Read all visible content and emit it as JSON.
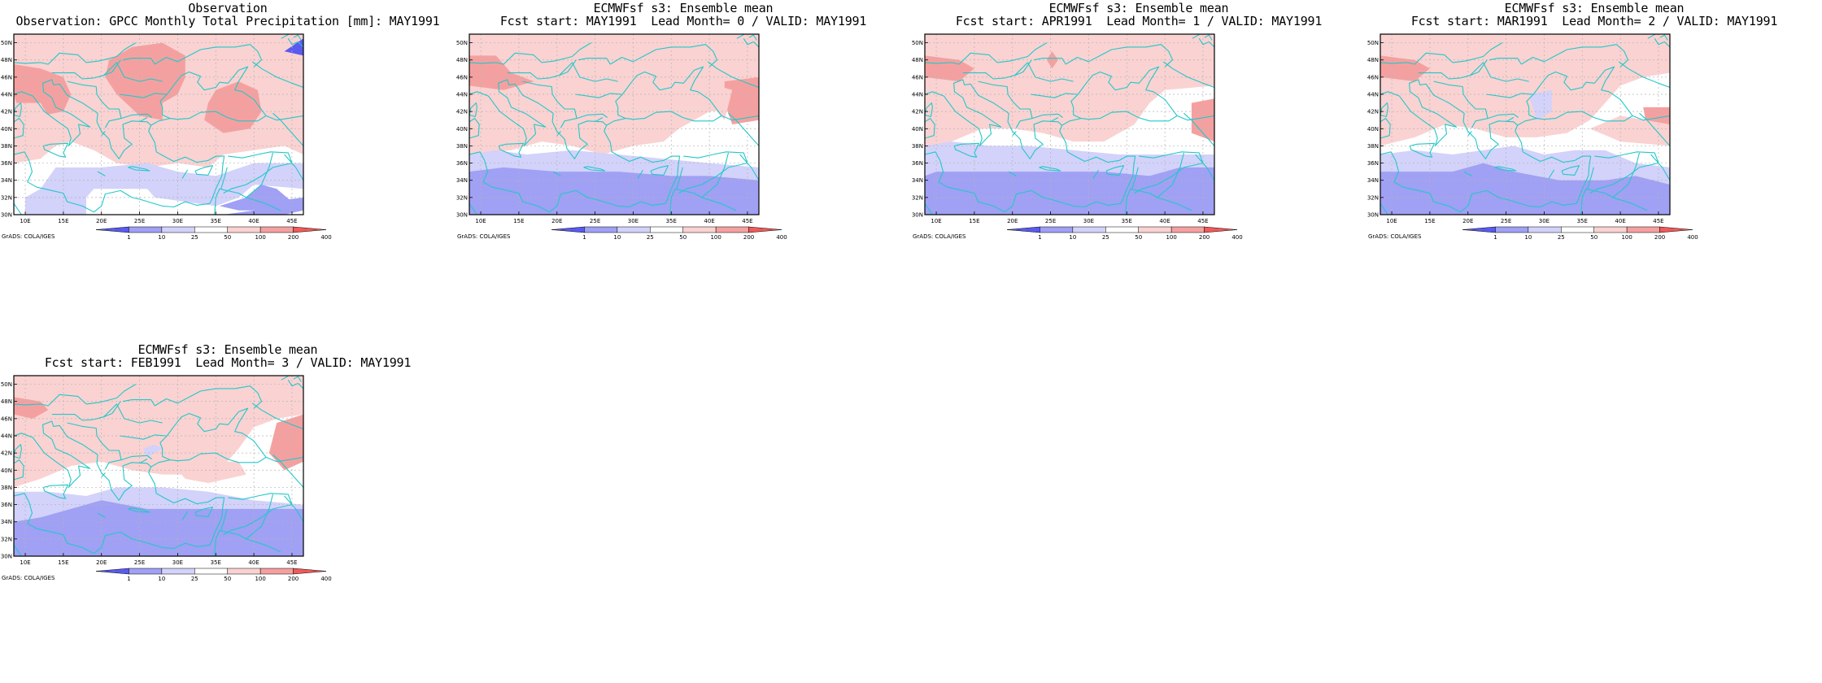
{
  "panels": [
    {
      "line1": "Observation",
      "line2": "Observation: GPCC Monthly Total Precipitation [mm]: MAY1991",
      "variant": "obs"
    },
    {
      "line1": "ECMWFsf s3: Ensemble mean",
      "line2": "Fcst start: MAY1991  Lead Month= 0 / VALID: MAY1991",
      "variant": "lead0"
    },
    {
      "line1": "ECMWFsf s3: Ensemble mean",
      "line2": "Fcst start: APR1991  Lead Month= 1 / VALID: MAY1991",
      "variant": "lead1"
    },
    {
      "line1": "ECMWFsf s3: Ensemble mean",
      "line2": "Fcst start: MAR1991  Lead Month= 2 / VALID: MAY1991",
      "variant": "lead2"
    },
    {
      "line1": "ECMWFsf s3: Ensemble mean",
      "line2": "Fcst start: FEB1991  Lead Month= 3 / VALID: MAY1991",
      "variant": "lead3"
    }
  ],
  "lat_labels": [
    "50N",
    "48N",
    "46N",
    "44N",
    "42N",
    "40N",
    "38N",
    "36N",
    "34N",
    "32N",
    "30N"
  ],
  "lon_labels": [
    "10E",
    "15E",
    "20E",
    "25E",
    "30E",
    "35E",
    "40E",
    "45E"
  ],
  "colorbar": {
    "labels": [
      "1",
      "10",
      "25",
      "50",
      "100",
      "200",
      "400"
    ],
    "colors": [
      "#5a5af0",
      "#a0a0f5",
      "#d2d2fa",
      "#ffffff",
      "#fad2d2",
      "#f5a0a0",
      "#f05a5a"
    ]
  },
  "credit": "GrADS: COLA/IGES",
  "colors": {
    "coastline": "#22c8c8",
    "grid": "#b4b4b4",
    "frame": "#000000"
  }
}
